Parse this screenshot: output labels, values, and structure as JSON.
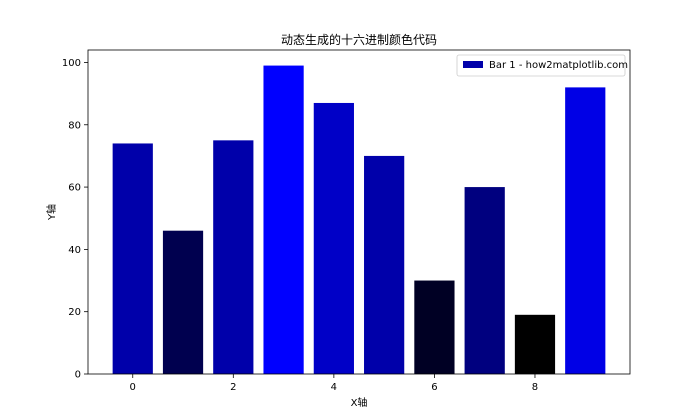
{
  "chart_data": {
    "type": "bar",
    "title": "动态生成的十六进制颜色代码",
    "xlabel": "X轴",
    "ylabel": "Y轴",
    "x": [
      0,
      1,
      2,
      3,
      4,
      5,
      6,
      7,
      8,
      9
    ],
    "values": [
      74,
      46,
      75,
      99,
      87,
      70,
      30,
      60,
      19,
      92
    ],
    "colors": [
      "#0000aa",
      "#00004f",
      "#0000aa",
      "#0000ff",
      "#0000c7",
      "#0000aa",
      "#000024",
      "#00007f",
      "#000000",
      "#0000e6"
    ],
    "xlim": [
      -0.89,
      9.89
    ],
    "ylim": [
      0,
      104
    ],
    "xticks": [
      "0",
      "2",
      "4",
      "6",
      "8"
    ],
    "yticks": [
      "0",
      "20",
      "40",
      "60",
      "80",
      "100"
    ],
    "legend": {
      "label": "Bar 1 - how2matplotlib.com",
      "color": "#0000aa",
      "placement": "top-right"
    },
    "grid": false
  }
}
